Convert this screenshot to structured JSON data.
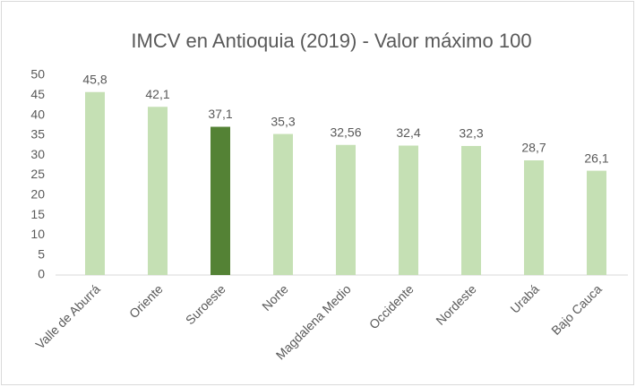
{
  "chart_data": {
    "type": "bar",
    "title": "IMCV en Antioquia (2019) - Valor máximo 100",
    "categories": [
      "Valle de Aburrá",
      "Oriente",
      "Suroeste",
      "Norte",
      "Magdalena Medio",
      "Occidente",
      "Nordeste",
      "Urabá",
      "Bajo Cauca"
    ],
    "values": [
      45.8,
      42.1,
      37.1,
      35.3,
      32.56,
      32.4,
      32.3,
      28.7,
      26.1
    ],
    "value_labels": [
      "45,8",
      "42,1",
      "37,1",
      "35,3",
      "32,56",
      "32,4",
      "32,3",
      "28,7",
      "26,1"
    ],
    "colors": [
      "#c5e0b4",
      "#c5e0b4",
      "#548235",
      "#c5e0b4",
      "#c5e0b4",
      "#c5e0b4",
      "#c5e0b4",
      "#c5e0b4",
      "#c5e0b4"
    ],
    "ylim": [
      0,
      50
    ],
    "yticks": [
      0,
      5,
      10,
      15,
      20,
      25,
      30,
      35,
      40,
      45,
      50
    ],
    "grid": false
  }
}
